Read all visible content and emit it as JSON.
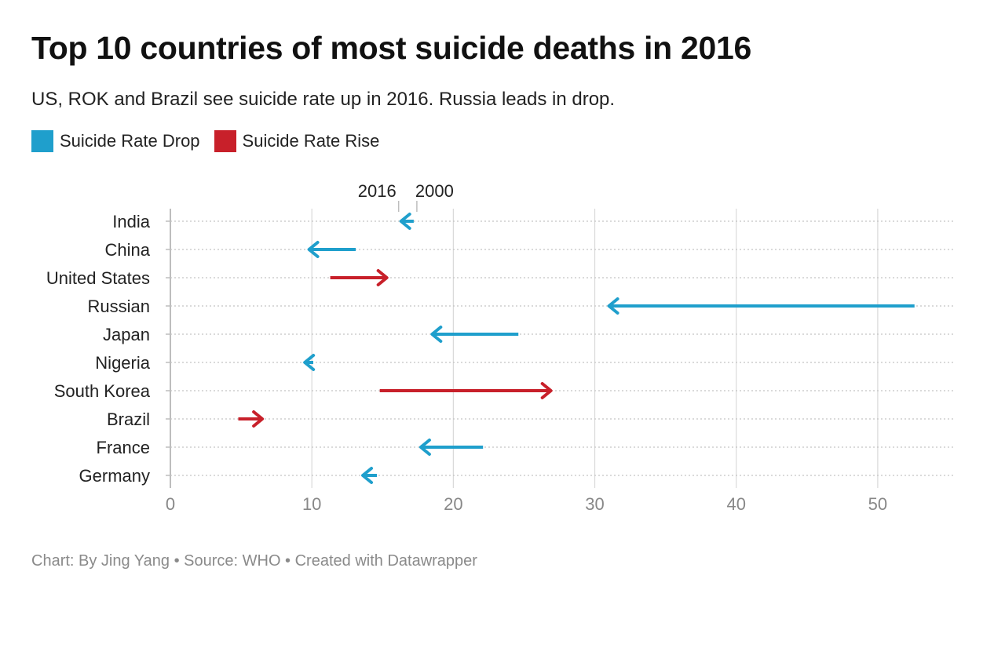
{
  "chart_data": {
    "type": "arrow",
    "title": "Top 10 countries of most suicide deaths in 2016",
    "subtitle": "US, ROK and Brazil see suicide rate up in 2016. Russia leads in drop.",
    "legend": {
      "placement": "top-left",
      "items": [
        {
          "label": "Suicide Rate Drop",
          "color": "#1f9fcc"
        },
        {
          "label": "Suicide Rate Rise",
          "color": "#c8202a"
        }
      ]
    },
    "key_labels": {
      "end": "2016",
      "start": "2000"
    },
    "categories": [
      "India",
      "China",
      "United States",
      "Russian",
      "Japan",
      "Nigeria",
      "South Korea",
      "Brazil",
      "France",
      "Germany"
    ],
    "series": [
      {
        "name": "2000",
        "values": [
          17.2,
          13.1,
          11.3,
          52.6,
          24.6,
          10.1,
          14.8,
          4.8,
          22.1,
          14.6
        ]
      },
      {
        "name": "2016",
        "values": [
          16.3,
          9.8,
          15.3,
          31.0,
          18.5,
          9.5,
          26.9,
          6.5,
          17.7,
          13.6
        ]
      }
    ],
    "xlim": [
      0,
      55.5
    ],
    "xticks": [
      0,
      10,
      20,
      30,
      40,
      50
    ],
    "grid": true
  },
  "footer": {
    "text": "Chart: By Jing Yang • Source: WHO • Created with Datawrapper"
  }
}
